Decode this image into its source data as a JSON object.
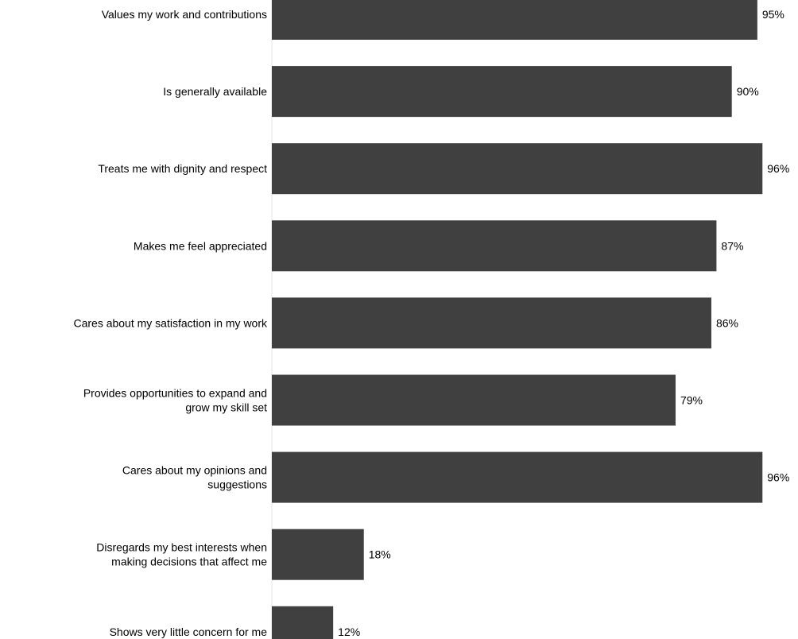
{
  "chart_data": {
    "type": "bar",
    "orientation": "horizontal",
    "categories": [
      "Values my work and contributions",
      "Is generally available",
      "Treats me with dignity and respect",
      "Makes me feel appreciated",
      "Cares about my satisfaction in my work",
      "Provides opportunities to expand and grow my skill set",
      "Cares about my opinions and suggestions",
      "Disregards my best interests when making decisions that affect me",
      "Shows very little concern for me"
    ],
    "category_lines": [
      [
        "Values my work and contributions"
      ],
      [
        "Is generally available"
      ],
      [
        "Treats me with dignity and respect"
      ],
      [
        "Makes me feel appreciated"
      ],
      [
        "Cares about my satisfaction in my work"
      ],
      [
        "Provides opportunities to expand and",
        "grow my skill set"
      ],
      [
        "Cares about my opinions and",
        "suggestions"
      ],
      [
        "Disregards my best interests when",
        "making decisions that affect me"
      ],
      [
        "Shows very little concern for me"
      ]
    ],
    "values": [
      95,
      90,
      96,
      87,
      86,
      79,
      96,
      18,
      12
    ],
    "value_labels": [
      "95%",
      "90%",
      "96%",
      "87%",
      "86%",
      "79%",
      "96%",
      "18%",
      "12%"
    ],
    "xlim": [
      0,
      100
    ],
    "unit": "%",
    "bar_color": "#404040",
    "grid": false,
    "legend": "none",
    "title": "",
    "xlabel": "",
    "ylabel": ""
  }
}
